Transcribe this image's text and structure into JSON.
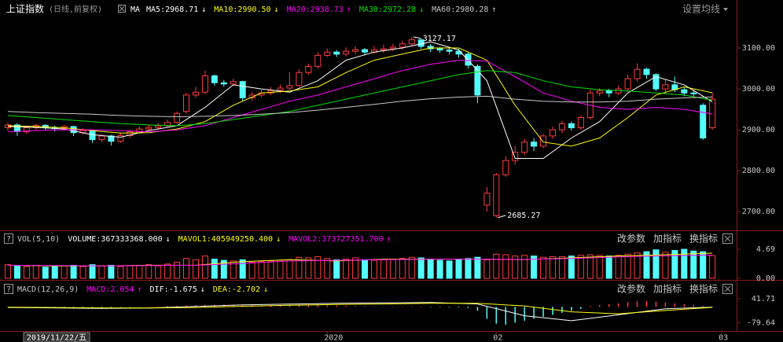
{
  "chart_data": [
    {
      "type": "candlestick",
      "title": "上证指数",
      "subtitle": "(日线,前复权)",
      "indicator": "MA",
      "settings": "设置均线",
      "open": [
        2905,
        2912,
        2895,
        2905,
        2911,
        2906,
        2903,
        2908,
        2893,
        2898,
        2876,
        2885,
        2872,
        2886,
        2895,
        2902,
        2906,
        2910,
        2918,
        2945,
        2985,
        2992,
        3032,
        3015,
        3012,
        3018,
        2978,
        2985,
        2990,
        2996,
        3002,
        3008,
        3040,
        3055,
        3082,
        3090,
        3085,
        3092,
        3096,
        3090,
        3095,
        3098,
        3102,
        3110,
        3120,
        3104,
        3098,
        3095,
        3092,
        3085,
        3055,
        2716,
        2690,
        2790,
        2825,
        2845,
        2870,
        2860,
        2885,
        2900,
        2915,
        2905,
        2930,
        2990,
        2995,
        2990,
        3000,
        3025,
        3048,
        3035,
        3000,
        3010,
        2998,
        2990,
        2960,
        2905
      ],
      "high": [
        2918,
        2916,
        2910,
        2915,
        2914,
        2910,
        2912,
        2910,
        2904,
        2900,
        2890,
        2888,
        2892,
        2900,
        2908,
        2912,
        2916,
        2925,
        2945,
        2990,
        3005,
        3045,
        3035,
        3022,
        3025,
        3020,
        2992,
        2998,
        3005,
        3010,
        3040,
        3048,
        3062,
        3090,
        3098,
        3095,
        3102,
        3104,
        3100,
        3105,
        3108,
        3110,
        3118,
        3127.17,
        3122,
        3110,
        3102,
        3100,
        3098,
        3090,
        3060,
        2760,
        2795,
        2835,
        2860,
        2878,
        2880,
        2890,
        2908,
        2922,
        2920,
        2935,
        2998,
        3002,
        3000,
        3008,
        3035,
        3062,
        3052,
        3038,
        3022,
        3030,
        3005,
        2998,
        2965,
        2990
      ],
      "low": [
        2898,
        2885,
        2890,
        2900,
        2900,
        2896,
        2898,
        2885,
        2888,
        2868,
        2870,
        2862,
        2868,
        2880,
        2890,
        2898,
        2900,
        2905,
        2915,
        2940,
        2978,
        2988,
        3008,
        3005,
        3008,
        2970,
        2972,
        2980,
        2985,
        2990,
        2998,
        3005,
        3035,
        3050,
        3078,
        3078,
        3080,
        3085,
        3082,
        3086,
        3088,
        3092,
        3096,
        3105,
        3098,
        3090,
        3088,
        3084,
        3076,
        3050,
        2965,
        2700,
        2685.27,
        2785,
        2815,
        2838,
        2848,
        2855,
        2878,
        2892,
        2898,
        2900,
        2925,
        2982,
        2980,
        2985,
        2995,
        3018,
        3025,
        2995,
        2990,
        2992,
        2982,
        2978,
        2875,
        2900
      ],
      "close": [
        2912,
        2896,
        2905,
        2911,
        2906,
        2903,
        2908,
        2893,
        2898,
        2876,
        2885,
        2872,
        2886,
        2895,
        2902,
        2906,
        2910,
        2918,
        2940,
        2985,
        2992,
        3032,
        3015,
        3012,
        3018,
        2978,
        2985,
        2990,
        2996,
        3002,
        3008,
        3040,
        3055,
        3082,
        3090,
        3085,
        3092,
        3096,
        3090,
        3095,
        3098,
        3102,
        3110,
        3120,
        3104,
        3098,
        3095,
        3092,
        3085,
        3058,
        2985,
        2745,
        2790,
        2825,
        2845,
        2870,
        2860,
        2885,
        2900,
        2915,
        2905,
        2930,
        2990,
        2995,
        2990,
        3000,
        3025,
        3048,
        3035,
        3000,
        3010,
        2998,
        2990,
        2988,
        2880,
        2975
      ],
      "up_color": "#ff3c3c",
      "down_color": "#54fcfc",
      "xlim": [
        -0.5,
        77.5
      ],
      "xticks": [
        {
          "value": 2,
          "label": "2019/11/22/五"
        },
        {
          "value": 34,
          "label": "2020"
        },
        {
          "value": 52,
          "label": "02"
        },
        {
          "value": 76,
          "label": "03"
        }
      ],
      "ylim": [
        2660,
        3175
      ],
      "yticks": [
        {
          "value": 3100,
          "label": "3100.00"
        },
        {
          "value": 3000,
          "label": "3000.00"
        },
        {
          "value": 2900,
          "label": "2900.00"
        },
        {
          "value": 2800,
          "label": "2800.00"
        },
        {
          "value": 2700,
          "label": "2700.00"
        }
      ],
      "series": [
        {
          "name": "MA5:2968.71",
          "arrow": "↓",
          "color": "#ffffff",
          "x": [
            0,
            3,
            6,
            9,
            12,
            15,
            18,
            21,
            24,
            27,
            30,
            33,
            36,
            39,
            42,
            45,
            48,
            51,
            54,
            57,
            60,
            63,
            66,
            69,
            72,
            75
          ],
          "values": [
            2908,
            2906,
            2902,
            2888,
            2882,
            2898,
            2910,
            2955,
            3010,
            3000,
            2992,
            3020,
            3070,
            3090,
            3100,
            3115,
            3095,
            3020,
            2830,
            2830,
            2880,
            2920,
            2990,
            3030,
            3010,
            2968.71
          ]
        },
        {
          "name": "MA10:2990.50",
          "arrow": "↓",
          "color": "#ffff00",
          "x": [
            0,
            3,
            6,
            9,
            12,
            15,
            18,
            21,
            24,
            27,
            30,
            33,
            36,
            39,
            42,
            45,
            48,
            51,
            54,
            57,
            60,
            63,
            66,
            69,
            72,
            75
          ],
          "values": [
            2910,
            2908,
            2905,
            2898,
            2892,
            2893,
            2902,
            2920,
            2960,
            2990,
            2995,
            3005,
            3040,
            3070,
            3085,
            3100,
            3100,
            3070,
            2960,
            2870,
            2860,
            2880,
            2930,
            2985,
            3005,
            2990.5
          ]
        },
        {
          "name": "MA20:2938.73",
          "arrow": "↑",
          "color": "#ff00ff",
          "x": [
            0,
            3,
            6,
            9,
            12,
            15,
            18,
            21,
            24,
            27,
            30,
            33,
            36,
            39,
            42,
            45,
            48,
            51,
            54,
            57,
            60,
            63,
            66,
            69,
            72,
            75
          ],
          "values": [
            2895,
            2898,
            2900,
            2900,
            2898,
            2895,
            2900,
            2910,
            2930,
            2950,
            2970,
            2985,
            3005,
            3025,
            3045,
            3060,
            3070,
            3068,
            3030,
            2990,
            2970,
            2955,
            2950,
            2955,
            2950,
            2938.73
          ]
        },
        {
          "name": "MA30:2972.28",
          "arrow": "↓",
          "color": "#00e000",
          "x": [
            0,
            3,
            6,
            9,
            12,
            15,
            18,
            21,
            24,
            27,
            30,
            33,
            36,
            39,
            42,
            45,
            48,
            51,
            54,
            57,
            60,
            63,
            66,
            69,
            72,
            75
          ],
          "values": [
            2935,
            2930,
            2925,
            2920,
            2915,
            2912,
            2910,
            2915,
            2925,
            2935,
            2945,
            2960,
            2975,
            2990,
            3005,
            3020,
            3035,
            3045,
            3040,
            3020,
            3005,
            2998,
            2995,
            2990,
            2985,
            2972.28
          ]
        },
        {
          "name": "MA60:2980.28",
          "arrow": "↑",
          "color": "#c8c8c8",
          "x": [
            0,
            3,
            6,
            9,
            12,
            15,
            18,
            21,
            24,
            27,
            30,
            33,
            36,
            39,
            42,
            45,
            48,
            51,
            54,
            57,
            60,
            63,
            66,
            69,
            72,
            75
          ],
          "values": [
            2945,
            2942,
            2940,
            2938,
            2935,
            2933,
            2932,
            2933,
            2935,
            2938,
            2942,
            2948,
            2955,
            2962,
            2970,
            2976,
            2980,
            2982,
            2975,
            2970,
            2968,
            2968,
            2970,
            2975,
            2978,
            2980.28
          ]
        }
      ]
    },
    {
      "type": "bar",
      "title": "VOL(5,10)",
      "icon": "?",
      "value_label": "VOLUME:367333368.000",
      "value_arrow": "↓",
      "values": [
        2.2,
        2.0,
        1.9,
        2.1,
        1.8,
        1.9,
        2.0,
        2.1,
        1.9,
        2.2,
        2.0,
        2.1,
        1.9,
        2.0,
        2.1,
        2.2,
        2.0,
        2.3,
        2.6,
        3.2,
        3.0,
        3.6,
        3.1,
        2.9,
        2.8,
        3.0,
        2.6,
        2.7,
        2.8,
        2.9,
        3.0,
        3.4,
        3.3,
        3.5,
        3.2,
        3.0,
        3.1,
        3.3,
        3.0,
        2.9,
        3.0,
        3.1,
        3.2,
        3.4,
        3.3,
        3.0,
        2.9,
        2.8,
        3.1,
        3.2,
        3.4,
        3.0,
        3.9,
        3.8,
        3.6,
        3.7,
        3.6,
        3.4,
        3.5,
        3.5,
        3.6,
        3.7,
        3.8,
        3.7,
        3.6,
        3.7,
        3.9,
        4.1,
        4.3,
        4.6,
        4.2,
        4.5,
        4.69,
        4.4,
        4.3,
        3.67
      ],
      "ylim": [
        0,
        5.2
      ],
      "yticks": [
        4.69,
        {
          "value": 0,
          "label": "0.00"
        }
      ],
      "buttons": [
        "改参数",
        "加指标",
        "换指标"
      ],
      "series": [
        {
          "name": "MAVOL1:405949250.400",
          "arrow": "↓",
          "color": "#ffff00",
          "x": [
            0,
            5,
            10,
            15,
            20,
            25,
            30,
            35,
            40,
            45,
            50,
            55,
            60,
            65,
            70,
            75
          ],
          "values": [
            2.1,
            2.0,
            2.0,
            2.1,
            2.1,
            2.7,
            3.0,
            2.8,
            3.1,
            3.1,
            3.1,
            3.0,
            3.3,
            3.6,
            3.8,
            4.06
          ]
        },
        {
          "name": "MAVOL2:373727351.700",
          "arrow": "↑",
          "color": "#ff00ff",
          "x": [
            0,
            5,
            10,
            15,
            20,
            25,
            30,
            35,
            40,
            45,
            50,
            55,
            60,
            65,
            70,
            75
          ],
          "values": [
            2.1,
            2.05,
            2.0,
            2.05,
            2.1,
            2.4,
            2.8,
            2.9,
            3.0,
            3.1,
            3.1,
            3.05,
            3.2,
            3.45,
            3.65,
            3.74
          ]
        }
      ]
    },
    {
      "type": "macd",
      "title": "MACD(12,26,9)",
      "icon": "?",
      "value_label": "MACD:2.054",
      "value_arrow": "↑",
      "value_color": "#ff00ff",
      "values": [
        1,
        -1,
        -2,
        -2,
        -3,
        -3,
        -4,
        -4,
        -5,
        -5,
        -4,
        -3,
        -2,
        -1,
        1,
        2,
        3,
        4,
        5,
        7,
        9,
        10,
        11,
        12,
        11,
        10,
        9,
        8,
        8,
        8,
        9,
        10,
        9,
        8,
        7,
        6,
        5,
        4,
        3,
        2,
        2,
        1,
        1,
        2,
        1,
        -1,
        -2,
        -3,
        -4,
        -6,
        -20,
        -60,
        -85,
        -90,
        -80,
        -70,
        -60,
        -50,
        -40,
        -30,
        -20,
        -10,
        5,
        10,
        14,
        18,
        24,
        28,
        30,
        26,
        22,
        18,
        14,
        10,
        4,
        2.054
      ],
      "pos_color": "#ff3c3c",
      "neg_color": "#54fcfc",
      "ylim": [
        -122,
        53
      ],
      "yticks": [
        41.71,
        -79.64
      ],
      "buttons": [
        "改参数",
        "加指标",
        "换指标"
      ],
      "series": [
        {
          "name": "DIF:-1.675",
          "arrow": "↓",
          "color": "#ffffff",
          "x": [
            0,
            5,
            10,
            15,
            20,
            25,
            30,
            35,
            40,
            45,
            50,
            55,
            60,
            65,
            70,
            75
          ],
          "values": [
            -3,
            -5,
            -8,
            -6,
            2,
            10,
            14,
            18,
            20,
            22,
            15,
            -45,
            -70,
            -40,
            -10,
            -1.675
          ]
        },
        {
          "name": "DEA:-2.702",
          "arrow": "↓",
          "color": "#ffff00",
          "x": [
            0,
            5,
            10,
            15,
            20,
            25,
            30,
            35,
            40,
            45,
            50,
            55,
            60,
            65,
            70,
            75
          ],
          "values": [
            -2,
            -3,
            -5,
            -6,
            -3,
            3,
            8,
            12,
            15,
            18,
            18,
            5,
            -25,
            -35,
            -18,
            -2.702
          ]
        }
      ]
    }
  ]
}
